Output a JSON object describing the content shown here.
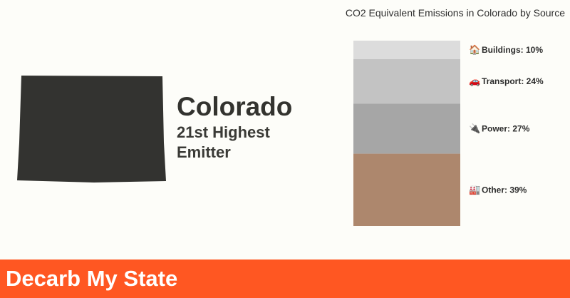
{
  "state": {
    "name": "Colorado",
    "rank_text": "21st Highest Emitter",
    "map_color": "#333330"
  },
  "chart_title": "CO2 Equivalent Emissions in Colorado by Source",
  "chart_data": {
    "type": "bar",
    "stacked": true,
    "title": "CO2 Equivalent Emissions in Colorado by Source",
    "unit": "%",
    "ylim": [
      0,
      100
    ],
    "grid": false,
    "legend": "none",
    "segments": [
      {
        "name": "Buildings",
        "label": "Buildings: 10%",
        "icon": "house-icon",
        "icon_glyph": "🏠",
        "value": 10,
        "color": "#dcdcdc"
      },
      {
        "name": "Transport",
        "label": "Transport: 24%",
        "icon": "car-icon",
        "icon_glyph": "🚗",
        "value": 24,
        "color": "#c3c3c3"
      },
      {
        "name": "Power",
        "label": "Power: 27%",
        "icon": "plug-icon",
        "icon_glyph": "🔌",
        "value": 27,
        "color": "#a6a6a6"
      },
      {
        "name": "Other",
        "label": "Other: 39%",
        "icon": "factory-icon",
        "icon_glyph": "🏭",
        "value": 39,
        "color": "#ad876d"
      }
    ]
  },
  "footer": {
    "title": "Decarb My State",
    "color": "#ff5722"
  }
}
